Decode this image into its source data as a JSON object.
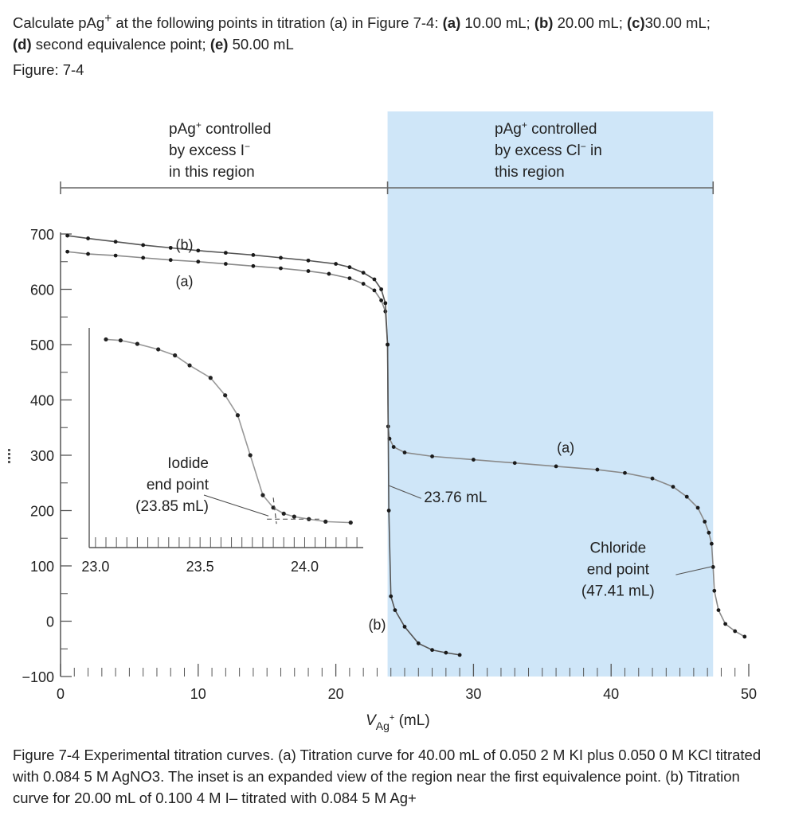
{
  "question": {
    "prefix": "Calculate pAg",
    "sup": "+",
    "mid": " at the following points in titration (a) in Figure 7-4: ",
    "parts": [
      {
        "label": "(a)",
        "text": " 10.00 mL; "
      },
      {
        "label": "(b)",
        "text": " 20.00 mL; "
      },
      {
        "label": "(c)",
        "text": "30.00 mL;"
      },
      {
        "label": "(d)",
        "text": " second equivalence point; "
      },
      {
        "label": "(e)",
        "text": " 50.00 mL"
      }
    ]
  },
  "figure_label": "Figure: 7-4",
  "caption": "Figure 7-4 Experimental titration curves. (a) Titration curve for 40.00 mL of 0.050 2 M KI plus 0.050 0 M KCl titrated with 0.084 5 M AgNO3. The inset is an expanded view of the region near the first equivalence point. (b) Titration curve for 20.00 mL of 0.100 4 M I– titrated with 0.084 5 M Ag+",
  "chart_data": [
    {
      "type": "line",
      "title": "",
      "xlabel": "V",
      "xlabel_sub": "Ag",
      "xlabel_sup": "+",
      "xlabel_unit": " (mL)",
      "ylabel": "",
      "xlim": [
        0,
        50
      ],
      "ylim": [
        -100,
        700
      ],
      "x_ticks": [
        0,
        10,
        20,
        30,
        40,
        50
      ],
      "y_ticks": [
        700,
        600,
        500,
        400,
        300,
        200,
        100,
        0,
        -100
      ],
      "y_tick_labels": [
        "700",
        "600",
        "500",
        "400",
        "300",
        "200",
        "100",
        "0",
        "−100"
      ],
      "shaded_region": {
        "x_start": 23.76,
        "x_end": 47.41,
        "color": "#cfe6f8"
      },
      "region_labels": [
        {
          "lines": [
            "pAg",
            "by excess I",
            "in this region"
          ],
          "sup1": "+",
          "sup2": "−",
          "word1": " controlled"
        },
        {
          "lines": [
            "pAg",
            "by excess Cl",
            "this region"
          ],
          "sup1": "+",
          "sup2": "−",
          "word1": " controlled",
          "word2": " in"
        }
      ],
      "series": [
        {
          "name": "(a)",
          "x": [
            0.5,
            2,
            4,
            6,
            8,
            10,
            12,
            14,
            16,
            18,
            19.5,
            21,
            22,
            22.8,
            23.3,
            23.6,
            23.76,
            23.8,
            23.9,
            24.2,
            25,
            27,
            30,
            33,
            36,
            39,
            41,
            43,
            44.5,
            45.5,
            46.3,
            46.8,
            47.1,
            47.3,
            47.41,
            47.5,
            47.8,
            48.3,
            49,
            49.7
          ],
          "y": [
            668,
            664,
            661,
            657,
            653,
            650,
            646,
            642,
            638,
            633,
            628,
            620,
            610,
            598,
            580,
            560,
            500,
            352,
            330,
            315,
            305,
            298,
            292,
            286,
            280,
            274,
            268,
            258,
            243,
            225,
            205,
            180,
            160,
            140,
            98,
            55,
            20,
            -5,
            -18,
            -28
          ]
        },
        {
          "name": "(b)",
          "x": [
            0.5,
            2,
            4,
            6,
            8,
            10,
            12,
            14,
            16,
            18,
            20,
            21,
            22,
            22.8,
            23.3,
            23.6,
            23.76,
            23.85,
            24,
            24.3,
            25,
            26,
            27,
            28,
            29
          ],
          "y": [
            697,
            692,
            686,
            680,
            675,
            670,
            666,
            662,
            657,
            652,
            646,
            640,
            630,
            618,
            600,
            575,
            500,
            200,
            45,
            20,
            -10,
            -40,
            -52,
            -57,
            -61
          ]
        }
      ],
      "series_labels": [
        "(b)",
        "(a)",
        "(a)",
        "(b)"
      ],
      "annotations": [
        {
          "text": "23.76 mL"
        },
        {
          "lines": [
            "Chloride",
            "end point",
            "(47.41 mL)"
          ]
        }
      ]
    },
    {
      "type": "line",
      "title": "",
      "xlim": [
        22.97,
        24.28
      ],
      "ylim": [
        100,
        540
      ],
      "x_ticks": [
        23.0,
        23.5,
        24.0
      ],
      "x_tick_labels": [
        "23.0",
        "23.5",
        "24.0"
      ],
      "series": [
        {
          "name": "inset",
          "x": [
            23.05,
            23.12,
            23.2,
            23.3,
            23.38,
            23.45,
            23.55,
            23.62,
            23.68,
            23.74,
            23.8,
            23.85,
            23.9,
            23.95,
            24.02,
            24.1,
            24.22
          ],
          "y": [
            517,
            515,
            508,
            497,
            485,
            465,
            440,
            405,
            365,
            285,
            205,
            180,
            168,
            162,
            157,
            152,
            150
          ]
        }
      ],
      "annotation": {
        "lines": [
          "Iodide",
          "end point",
          "(23.85 mL)"
        ]
      }
    }
  ]
}
